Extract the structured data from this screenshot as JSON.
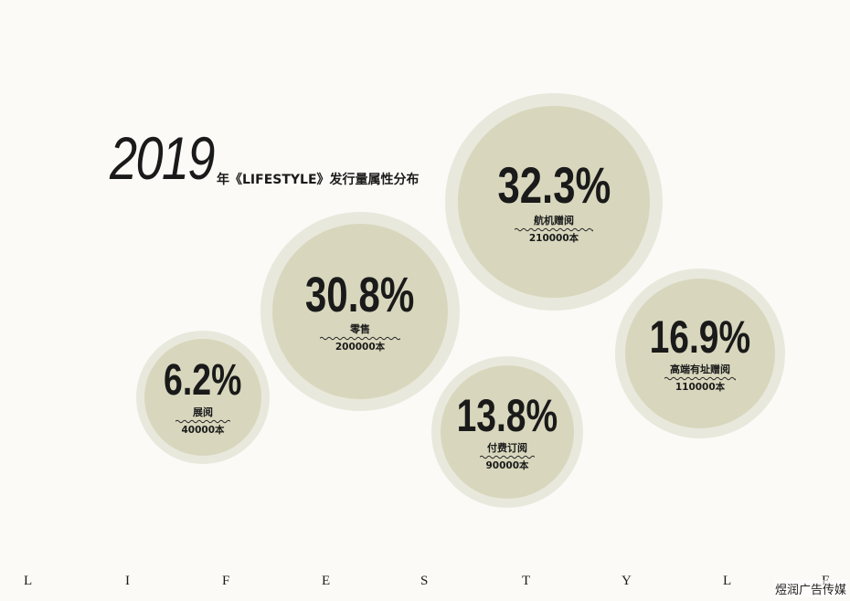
{
  "title": {
    "year": "2019",
    "subtitle": "年《LIFESTYLE》发行量属性分布"
  },
  "bubbles": [
    {
      "percent": "32.3%",
      "category": "航机赠阅",
      "count": "210000本"
    },
    {
      "percent": "30.8%",
      "category": "零售",
      "count": "200000本"
    },
    {
      "percent": "16.9%",
      "category": "高端有址赠阅",
      "count": "110000本"
    },
    {
      "percent": "13.8%",
      "category": "付费订阅",
      "count": "90000本"
    },
    {
      "percent": "6.2%",
      "category": "展阅",
      "count": "40000本"
    }
  ],
  "footer": {
    "letters": [
      "L",
      "I",
      "F",
      "E",
      "S",
      "T",
      "Y",
      "L",
      "E"
    ]
  },
  "watermark": "煜润广告传媒",
  "colors": {
    "background": "#fcfaf6",
    "bubble_outer": "#e9e8dc",
    "bubble_inner": "#d8d7bd",
    "text": "#1a1a1a"
  }
}
